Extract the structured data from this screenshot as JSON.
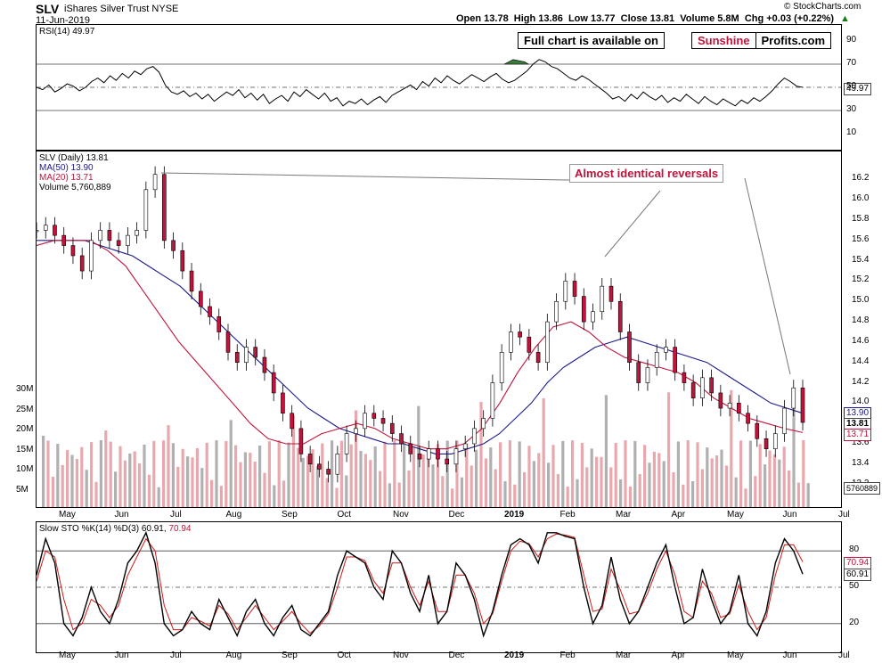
{
  "header": {
    "symbol": "SLV",
    "name": "iShares Silver Trust NYSE",
    "date": "11-Jun-2019",
    "ohlc": "Open 13.78  High 13.86  Low 13.77  Close 13.81  Volume 5.8M  Chg +0.03 (+0.22%)",
    "chg_arrow": "▲",
    "credit": "© StockCharts.com"
  },
  "promo": {
    "full_chart": "Full chart is available on",
    "brand_red": "Sunshine",
    "brand_black": "Profits.com"
  },
  "annotation": "Almost identical reversals",
  "rsi": {
    "label": "RSI(14) 49.97",
    "last": "49.97",
    "ticks": [
      "90",
      "70",
      "50",
      "30",
      "10"
    ],
    "values": [
      50,
      48,
      52,
      46,
      49,
      53,
      51,
      47,
      50,
      55,
      58,
      54,
      60,
      56,
      62,
      58,
      64,
      61,
      66,
      68,
      63,
      52,
      46,
      44,
      47,
      42,
      45,
      40,
      44,
      38,
      42,
      46,
      43,
      48,
      41,
      45,
      39,
      44,
      36,
      40,
      43,
      38,
      46,
      42,
      48,
      44,
      40,
      45,
      38,
      41,
      34,
      38,
      36,
      40,
      35,
      39,
      42,
      37,
      43,
      46,
      49,
      52,
      48,
      55,
      51,
      58,
      54,
      60,
      56,
      53,
      57,
      61,
      58,
      55,
      59,
      62,
      57,
      54,
      56,
      60,
      64,
      70,
      74,
      72,
      68,
      66,
      62,
      58,
      56,
      60,
      57,
      53,
      49,
      45,
      40,
      42,
      38,
      44,
      40,
      46,
      42,
      39,
      43,
      37,
      41,
      38,
      44,
      40,
      36,
      42,
      38,
      35,
      40,
      37,
      34,
      39,
      36,
      41,
      38,
      42,
      47,
      53,
      58,
      55,
      51,
      49.97
    ]
  },
  "price": {
    "label": "SLV (Daily) 13.81",
    "ma50_label": "MA(50) 13.90",
    "ma20_label": "MA(20) 13.71",
    "volume_label": "Volume 5,760,889",
    "ticks": [
      "16.2",
      "16.0",
      "15.8",
      "15.6",
      "15.4",
      "15.2",
      "15.0",
      "14.8",
      "14.6",
      "14.4",
      "14.2",
      "14.0",
      "13.8",
      "13.6",
      "13.4",
      "13.2"
    ],
    "tag_ma50": "13.90",
    "tag_close": "13.81",
    "tag_ma20": "13.71",
    "tag_volume": "5760889",
    "vol_ticks": [
      "30M",
      "25M",
      "20M",
      "15M",
      "10M",
      "5M"
    ],
    "months": [
      "May",
      "Jun",
      "Jul",
      "Aug",
      "Sep",
      "Oct",
      "Nov",
      "Dec",
      "2019",
      "Feb",
      "Mar",
      "Apr",
      "May",
      "Jun",
      "Jul"
    ],
    "ma50_color": "#1a1a8c",
    "ma20_color": "#c0143c"
  },
  "chart_data": {
    "type": "line",
    "series": [
      {
        "name": "SLV (Daily)",
        "values": [
          15.7,
          15.75,
          15.65,
          15.55,
          15.45,
          15.3,
          15.6,
          15.7,
          15.6,
          15.55,
          15.65,
          15.7,
          16.1,
          16.25,
          15.6,
          15.5,
          15.3,
          15.1,
          14.95,
          14.85,
          14.7,
          14.5,
          14.4,
          14.55,
          14.45,
          14.3,
          14.1,
          13.9,
          13.75,
          13.5,
          13.4,
          13.35,
          13.3,
          13.5,
          13.7,
          13.75,
          13.9,
          13.85,
          13.8,
          13.7,
          13.6,
          13.5,
          13.45,
          13.55,
          13.45,
          13.4,
          13.55,
          13.6,
          13.75,
          13.85,
          14.2,
          14.5,
          14.7,
          14.65,
          14.5,
          14.4,
          14.8,
          15.0,
          15.2,
          15.05,
          14.8,
          14.9,
          15.15,
          15.0,
          14.7,
          14.4,
          14.2,
          14.35,
          14.5,
          14.55,
          14.3,
          14.2,
          14.05,
          14.25,
          14.1,
          13.95,
          14.0,
          13.9,
          13.8,
          13.65,
          13.55,
          13.7,
          13.95,
          14.15,
          13.81
        ]
      },
      {
        "name": "MA(50)",
        "values": [
          15.6,
          15.6,
          15.6,
          15.6,
          15.55,
          15.5,
          15.45,
          15.35,
          15.25,
          15.15,
          15.0,
          14.85,
          14.7,
          14.55,
          14.4,
          14.25,
          14.1,
          13.95,
          13.85,
          13.75,
          13.7,
          13.65,
          13.6,
          13.6,
          13.55,
          13.5,
          13.5,
          13.55,
          13.6,
          13.7,
          13.85,
          14.0,
          14.2,
          14.35,
          14.45,
          14.55,
          14.6,
          14.65,
          14.6,
          14.55,
          14.5,
          14.45,
          14.4,
          14.3,
          14.2,
          14.1,
          14.0,
          13.95,
          13.9
        ]
      },
      {
        "name": "MA(20)",
        "values": [
          15.55,
          15.6,
          15.6,
          15.6,
          15.5,
          15.35,
          15.1,
          14.85,
          14.6,
          14.4,
          14.2,
          14.0,
          13.8,
          13.65,
          13.6,
          13.6,
          13.7,
          13.75,
          13.8,
          13.75,
          13.65,
          13.6,
          13.55,
          13.55,
          13.6,
          13.75,
          14.0,
          14.3,
          14.55,
          14.75,
          14.8,
          14.7,
          14.55,
          14.45,
          14.4,
          14.35,
          14.3,
          14.2,
          14.05,
          13.95,
          13.85,
          13.8,
          13.75,
          13.71
        ]
      }
    ],
    "ylim": [
      13.1,
      16.3
    ]
  },
  "sto": {
    "label_pre": "Slow STO %K(14) %D(3) 60.91, ",
    "label_d": "70.94",
    "tag_d": "70.94",
    "tag_k": "60.91",
    "ticks": [
      "80",
      "50",
      "20"
    ],
    "k": [
      60,
      90,
      70,
      20,
      10,
      25,
      50,
      30,
      20,
      40,
      70,
      80,
      95,
      70,
      20,
      10,
      15,
      30,
      20,
      15,
      40,
      25,
      10,
      30,
      40,
      20,
      10,
      25,
      35,
      15,
      10,
      20,
      30,
      60,
      80,
      75,
      70,
      50,
      40,
      80,
      70,
      45,
      30,
      60,
      20,
      30,
      70,
      60,
      40,
      10,
      30,
      60,
      85,
      90,
      85,
      70,
      95,
      95,
      92,
      90,
      50,
      20,
      35,
      75,
      40,
      20,
      30,
      50,
      70,
      85,
      50,
      20,
      25,
      65,
      40,
      20,
      30,
      60,
      20,
      10,
      30,
      70,
      90,
      80,
      60.91
    ],
    "d": [
      55,
      80,
      75,
      40,
      15,
      20,
      40,
      35,
      25,
      35,
      60,
      75,
      90,
      80,
      35,
      15,
      15,
      25,
      22,
      18,
      35,
      28,
      15,
      25,
      35,
      25,
      15,
      22,
      30,
      20,
      12,
      18,
      28,
      50,
      75,
      75,
      72,
      55,
      45,
      70,
      70,
      50,
      35,
      55,
      30,
      30,
      60,
      60,
      45,
      20,
      28,
      55,
      80,
      88,
      86,
      75,
      90,
      94,
      93,
      91,
      60,
      30,
      32,
      65,
      48,
      28,
      30,
      45,
      65,
      80,
      60,
      30,
      25,
      55,
      45,
      25,
      28,
      52,
      30,
      15,
      25,
      60,
      85,
      85,
      70.94
    ]
  }
}
